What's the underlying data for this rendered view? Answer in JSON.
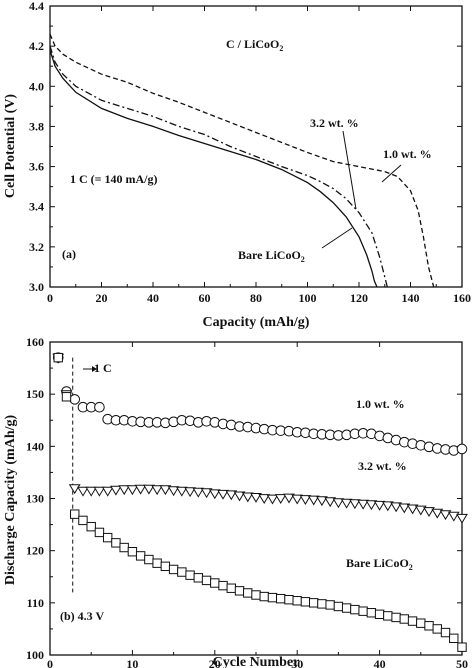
{
  "chart_data": [
    {
      "type": "line",
      "panel_label": "(a)",
      "xlabel": "Capacity (mAh/g)",
      "ylabel": "Cell Potential (V)",
      "xlim": [
        0,
        160
      ],
      "ylim": [
        3.0,
        4.4
      ],
      "xticks": [
        0,
        20,
        40,
        60,
        80,
        100,
        120,
        140,
        160
      ],
      "yticks": [
        3.0,
        3.2,
        3.4,
        3.6,
        3.8,
        4.0,
        4.2,
        4.4
      ],
      "grid": false,
      "annotations": {
        "system": "C / LiCoO",
        "system_sub": "2",
        "rate": "1 C (= 140 mA/g)",
        "bare": "Bare LiCoO",
        "bare_sub": "2",
        "label_32": "3.2 wt. %",
        "label_10": "1.0 wt. %"
      },
      "series": [
        {
          "label_ref": "bare",
          "style": "solid",
          "x": [
            0,
            2,
            5,
            10,
            20,
            30,
            40,
            50,
            60,
            70,
            80,
            90,
            100,
            105,
            110,
            115,
            120,
            123,
            125,
            126,
            127
          ],
          "y": [
            4.18,
            4.1,
            4.04,
            3.97,
            3.89,
            3.84,
            3.8,
            3.755,
            3.715,
            3.675,
            3.635,
            3.585,
            3.52,
            3.475,
            3.42,
            3.35,
            3.25,
            3.16,
            3.08,
            3.03,
            3.0
          ]
        },
        {
          "label_ref": "label_32",
          "style": "dash-dot",
          "x": [
            0,
            2,
            5,
            10,
            20,
            30,
            40,
            50,
            60,
            70,
            80,
            90,
            100,
            105,
            110,
            115,
            120,
            125,
            128,
            130,
            131
          ],
          "y": [
            4.2,
            4.12,
            4.06,
            4.0,
            3.93,
            3.89,
            3.85,
            3.8,
            3.76,
            3.7,
            3.65,
            3.6,
            3.555,
            3.525,
            3.49,
            3.44,
            3.37,
            3.27,
            3.15,
            3.05,
            3.0
          ]
        },
        {
          "label_ref": "label_10",
          "style": "dashed",
          "x": [
            0,
            2,
            5,
            10,
            20,
            30,
            40,
            50,
            60,
            70,
            80,
            90,
            100,
            110,
            120,
            130,
            135,
            140,
            143,
            145,
            147,
            149
          ],
          "y": [
            4.26,
            4.2,
            4.16,
            4.12,
            4.06,
            4.02,
            3.965,
            3.92,
            3.87,
            3.82,
            3.77,
            3.72,
            3.67,
            3.625,
            3.6,
            3.575,
            3.55,
            3.48,
            3.38,
            3.25,
            3.1,
            3.0
          ]
        }
      ]
    },
    {
      "type": "scatter",
      "panel_label": "(b) 4.3 V",
      "xlabel": "Cycle Number",
      "ylabel": "Discharge Capacity (mAh/g)",
      "xlim": [
        0,
        50
      ],
      "ylim": [
        100,
        160
      ],
      "xticks": [
        0,
        10,
        20,
        30,
        40,
        50
      ],
      "yticks": [
        100,
        110,
        120,
        130,
        140,
        150,
        160
      ],
      "grid": false,
      "annotations": {
        "rate_change": "1 C",
        "label_10": "1.0 wt. %",
        "label_32": "3.2 wt. %",
        "bare": "Bare LiCoO",
        "bare_sub": "2"
      },
      "rate_change_cycle": 3,
      "series": [
        {
          "label_ref": "label_10",
          "marker": "circle",
          "x": [
            1,
            2,
            3,
            4,
            5,
            6,
            7,
            8,
            9,
            10,
            11,
            12,
            13,
            14,
            15,
            16,
            17,
            18,
            19,
            20,
            21,
            22,
            23,
            24,
            25,
            26,
            27,
            28,
            29,
            30,
            31,
            32,
            33,
            34,
            35,
            36,
            37,
            38,
            39,
            40,
            41,
            42,
            43,
            44,
            45,
            46,
            47,
            48,
            49,
            50
          ],
          "y": [
            157,
            150.5,
            149,
            147.5,
            147.5,
            147.5,
            145.2,
            145,
            145,
            144.8,
            144.7,
            144.6,
            144.6,
            144.5,
            144.7,
            145,
            144.9,
            144.6,
            144.8,
            144.6,
            144.3,
            144.1,
            143.8,
            143.7,
            143.5,
            143.3,
            143.1,
            143,
            142.9,
            142.7,
            142.6,
            142.4,
            142.3,
            142.2,
            142.1,
            142.2,
            142.4,
            142.5,
            142.4,
            142,
            141.6,
            141.2,
            140.8,
            140.5,
            140.2,
            139.9,
            139.6,
            139.4,
            139.2,
            139.5
          ]
        },
        {
          "label_ref": "label_32",
          "marker": "triangle-down",
          "x": [
            1,
            2,
            3,
            4,
            5,
            6,
            7,
            8,
            9,
            10,
            11,
            12,
            13,
            14,
            15,
            16,
            17,
            18,
            19,
            20,
            21,
            22,
            23,
            24,
            25,
            26,
            27,
            28,
            29,
            30,
            31,
            32,
            33,
            34,
            35,
            36,
            37,
            38,
            39,
            40,
            41,
            42,
            43,
            44,
            45,
            46,
            47,
            48,
            49,
            50
          ],
          "y": [
            157,
            150,
            132,
            131.5,
            131.5,
            131.5,
            131.5,
            131.7,
            131.8,
            131.8,
            131.9,
            131.9,
            131.8,
            131.8,
            131.6,
            131.5,
            131.4,
            131.3,
            131.2,
            131,
            130.9,
            130.8,
            130.6,
            130.4,
            130.3,
            130.1,
            130,
            130.1,
            130.2,
            130,
            129.9,
            129.8,
            129.7,
            129.5,
            129.3,
            129.2,
            129.1,
            129,
            128.9,
            128.8,
            128.7,
            128.5,
            128.3,
            128.1,
            127.9,
            127.6,
            127.3,
            127,
            126.7,
            126.3
          ]
        },
        {
          "label_ref": "bare",
          "marker": "square",
          "x": [
            1,
            2,
            3,
            4,
            5,
            6,
            7,
            8,
            9,
            10,
            11,
            12,
            13,
            14,
            15,
            16,
            17,
            18,
            19,
            20,
            21,
            22,
            23,
            24,
            25,
            26,
            27,
            28,
            29,
            30,
            31,
            32,
            33,
            34,
            35,
            36,
            37,
            38,
            39,
            40,
            41,
            42,
            43,
            44,
            45,
            46,
            47,
            48,
            49,
            50
          ],
          "y": [
            157,
            149.5,
            127,
            125.8,
            124.6,
            123.5,
            122.5,
            121.5,
            120.6,
            119.8,
            119,
            118.3,
            117.6,
            117,
            116.4,
            115.9,
            115.3,
            114.8,
            114.3,
            113.8,
            113.3,
            112.8,
            112.3,
            111.9,
            111.5,
            111.2,
            111,
            110.8,
            110.6,
            110.4,
            110.2,
            110,
            109.8,
            109.6,
            109.3,
            109,
            108.7,
            108.4,
            108.1,
            107.8,
            107.5,
            107.2,
            106.9,
            106.5,
            106.1,
            105.6,
            105,
            104.3,
            103.2,
            101.5
          ]
        }
      ]
    }
  ]
}
